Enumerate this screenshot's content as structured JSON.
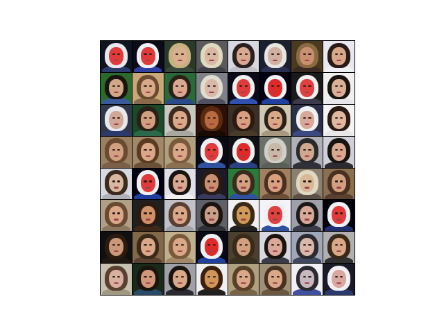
{
  "grid": {
    "rows": 8,
    "cols": 8,
    "tiles": [
      {
        "bg": "#0e1420",
        "hair": "#e8e8ec",
        "face": "#e03a3a",
        "body": "#2a3a6a"
      },
      {
        "bg": "#0a0a18",
        "hair": "#f0f0f4",
        "face": "#e03a3a",
        "body": "#3040a0"
      },
      {
        "bg": "#2a3a2a",
        "hair": "#c8b080",
        "face": "#d8b090",
        "body": "#3a4a3a"
      },
      {
        "bg": "#5a5a5a",
        "hair": "#e0d8c0",
        "face": "#d8b8a0",
        "body": "#404048"
      },
      {
        "bg": "#d8d8e0",
        "hair": "#2a2020",
        "face": "#d8a890",
        "body": "#c0c0c8"
      },
      {
        "bg": "#1a2030",
        "hair": "#e8e4e0",
        "face": "#d0b0a0",
        "body": "#2a3050"
      },
      {
        "bg": "#4a3a20",
        "hair": "#8a6a40",
        "face": "#c89070",
        "body": "#3a2a20"
      },
      {
        "bg": "#e8e8f0",
        "hair": "#2a1a18",
        "face": "#d8a888",
        "body": "#f0f0f4"
      },
      {
        "bg": "#2a6a2a",
        "hair": "#1a1410",
        "face": "#d0a888",
        "body": "#3a5a9a"
      },
      {
        "bg": "#c8a878",
        "hair": "#6a4a30",
        "face": "#d8a888",
        "body": "#8a6a4a"
      },
      {
        "bg": "#2a6a3a",
        "hair": "#2a2018",
        "face": "#d8a890",
        "body": "#2a4a8a"
      },
      {
        "bg": "#808088",
        "hair": "#e0dcd0",
        "face": "#d8b8a8",
        "body": "#505060"
      },
      {
        "bg": "#0a0a18",
        "hair": "#f0f0f0",
        "face": "#e03a3a",
        "body": "#3050b0"
      },
      {
        "bg": "#000010",
        "hair": "#f0f0f4",
        "face": "#e02a2a",
        "body": "#2040a0"
      },
      {
        "bg": "#1a1a1a",
        "hair": "#f0f0f0",
        "face": "#e04040",
        "body": "#3a3a4a"
      },
      {
        "bg": "#f0f0f0",
        "hair": "#1a1410",
        "face": "#d8b098",
        "body": "#e8e8ec"
      },
      {
        "bg": "#30384a",
        "hair": "#e8e8ec",
        "face": "#d0a898",
        "body": "#2a3a6a"
      },
      {
        "bg": "#1a4a2a",
        "hair": "#2a2018",
        "face": "#d0a080",
        "body": "#2a6a4a"
      },
      {
        "bg": "#c8c8c0",
        "hair": "#3a2a20",
        "face": "#d8a888",
        "body": "#a8a8a0"
      },
      {
        "bg": "#2a1008",
        "hair": "#5a2a10",
        "face": "#b86a40",
        "body": "#1a0a04"
      },
      {
        "bg": "#3a3028",
        "hair": "#2a1a10",
        "face": "#d8a080",
        "body": "#4a3a2a"
      },
      {
        "bg": "#d0c8b0",
        "hair": "#2a2018",
        "face": "#d8a888",
        "body": "#a89880"
      },
      {
        "bg": "#2a3048",
        "hair": "#f0f0f0",
        "face": "#d8a898",
        "body": "#3a4a80"
      },
      {
        "bg": "#f4f4f4",
        "hair": "#2a1a14",
        "face": "#e0b8a0",
        "body": "#e8e8e8"
      },
      {
        "bg": "#9a8060",
        "hair": "#6a4a30",
        "face": "#d0a080",
        "body": "#7a6048"
      },
      {
        "bg": "#a08868",
        "hair": "#5a3a20",
        "face": "#d8a888",
        "body": "#6a5038"
      },
      {
        "bg": "#b0a080",
        "hair": "#7a5a3a",
        "face": "#d8a888",
        "body": "#8a7050"
      },
      {
        "bg": "#0a0a14",
        "hair": "#f0f0f4",
        "face": "#e03a3a",
        "body": "#3050a0"
      },
      {
        "bg": "#101018",
        "hair": "#f0f0f0",
        "face": "#e02a2a",
        "body": "#2a4080"
      },
      {
        "bg": "#6a7068",
        "hair": "#d0d0c8",
        "face": "#c8b8a8",
        "body": "#5a6058"
      },
      {
        "bg": "#b0b0b8",
        "hair": "#2a2a2a",
        "face": "#d0a890",
        "body": "#303038"
      },
      {
        "bg": "#d0d0d8",
        "hair": "#1a1410",
        "face": "#d8a890",
        "body": "#2a2a30"
      },
      {
        "bg": "#d8d8e0",
        "hair": "#3a2a20",
        "face": "#d8b8a0",
        "body": "#b0b0b8"
      },
      {
        "bg": "#000010",
        "hair": "#f0f0f4",
        "face": "#e03a3a",
        "body": "#2040a0"
      },
      {
        "bg": "#e0e0e8",
        "hair": "#1a1410",
        "face": "#d8a890",
        "body": "#f0f0f0"
      },
      {
        "bg": "#1a1a28",
        "hair": "#2a1a14",
        "face": "#c89070",
        "body": "#3a3a60"
      },
      {
        "bg": "#2a7a3a",
        "hair": "#3a2a20",
        "face": "#d0a080",
        "body": "#3050a0"
      },
      {
        "bg": "#a08060",
        "hair": "#4a3020",
        "face": "#d8a080",
        "body": "#6a5038"
      },
      {
        "bg": "#8a8070",
        "hair": "#e0d8c0",
        "face": "#d8b898",
        "body": "#5a5048"
      },
      {
        "bg": "#8a7050",
        "hair": "#4a3020",
        "face": "#d0a080",
        "body": "#5a4030"
      },
      {
        "bg": "#b0a088",
        "hair": "#6a4a30",
        "face": "#d8a888",
        "body": "#8a7860"
      },
      {
        "bg": "#202020",
        "hair": "#2a1a10",
        "face": "#d09068",
        "body": "#402818"
      },
      {
        "bg": "#c0c0c8",
        "hair": "#5a4030",
        "face": "#d8a888",
        "body": "#a0a0a8"
      },
      {
        "bg": "#606068",
        "hair": "#1a1410",
        "face": "#c8a088",
        "body": "#303038"
      },
      {
        "bg": "#f0f0f0",
        "hair": "#3a2a18",
        "face": "#d09a58",
        "body": "#202020"
      },
      {
        "bg": "#f4f4f8",
        "hair": "#f0f0f4",
        "face": "#e04040",
        "body": "#3050a0"
      },
      {
        "bg": "#a0a0a8",
        "hair": "#1a1a1a",
        "face": "#d8a898",
        "body": "#3a3a48"
      },
      {
        "bg": "#000008",
        "hair": "#f0f0f4",
        "face": "#e03a3a",
        "body": "#203070"
      },
      {
        "bg": "#101010",
        "hair": "#2a1a10",
        "face": "#c89878",
        "body": "#201810"
      },
      {
        "bg": "#806848",
        "hair": "#3a2818",
        "face": "#d8a888",
        "body": "#5a4030"
      },
      {
        "bg": "#c0b090",
        "hair": "#7a5a3a",
        "face": "#d8a888",
        "body": "#a08868"
      },
      {
        "bg": "#0a0a14",
        "hair": "#f0f0f4",
        "face": "#e02a2a",
        "body": "#2040a0"
      },
      {
        "bg": "#4a4030",
        "hair": "#3a2a18",
        "face": "#d0a080",
        "body": "#3a3020"
      },
      {
        "bg": "#d8d8e0",
        "hair": "#1a1410",
        "face": "#d8a898",
        "body": "#3a3a48"
      },
      {
        "bg": "#a0a8b8",
        "hair": "#2a2a30",
        "face": "#d8b8a8",
        "body": "#404860"
      },
      {
        "bg": "#b0b0b0",
        "hair": "#3a2818",
        "face": "#d8a888",
        "body": "#303030"
      },
      {
        "bg": "#c8c0b0",
        "hair": "#5a4030",
        "face": "#d8b0a0",
        "body": "#a09880"
      },
      {
        "bg": "#1a2a1a",
        "hair": "#1a1410",
        "face": "#d09878",
        "body": "#2a4a6a"
      },
      {
        "bg": "#a0a0a8",
        "hair": "#1a1410",
        "face": "#d8a888",
        "body": "#2a2a30"
      },
      {
        "bg": "#f0f0f0",
        "hair": "#3a2010",
        "face": "#d09858",
        "body": "#202020"
      },
      {
        "bg": "#b0a080",
        "hair": "#5a4028",
        "face": "#d8a888",
        "body": "#7a6448"
      },
      {
        "bg": "#a09078",
        "hair": "#4a3020",
        "face": "#d8a888",
        "body": "#6a5840"
      },
      {
        "bg": "#f0f0f4",
        "hair": "#2a2a30",
        "face": "#c8b8c0",
        "body": "#4050a0"
      },
      {
        "bg": "#1a1a28",
        "hair": "#f0f0f4",
        "face": "#d8a8a0",
        "body": "#2a3a70"
      }
    ]
  }
}
